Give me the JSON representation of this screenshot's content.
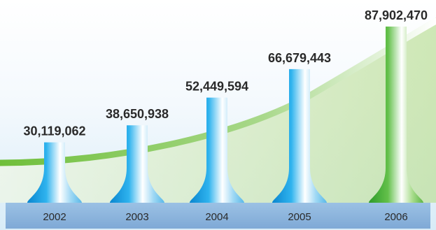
{
  "chart_data": {
    "type": "bar",
    "title": "",
    "xlabel": "",
    "ylabel": "",
    "categories": [
      "2002",
      "2003",
      "2004",
      "2005",
      "2006"
    ],
    "values": [
      30119062,
      38650938,
      52449594,
      66679443,
      87902470
    ],
    "value_labels": [
      "30,119,062",
      "38,650,938",
      "52,449,594",
      "66,679,443",
      "87,902,470"
    ],
    "ylim": [
      0,
      87902470
    ],
    "grid": false,
    "legend": "none",
    "highlight_category": "2006",
    "colors": {
      "bar": "#1f9fe0",
      "bar_highlight": "#4fb034",
      "axis_band": "#8fb6dc",
      "trend_curve": "#8cc864",
      "background_top": "#ffffff",
      "background_bottom": "#d9ecf7"
    }
  }
}
